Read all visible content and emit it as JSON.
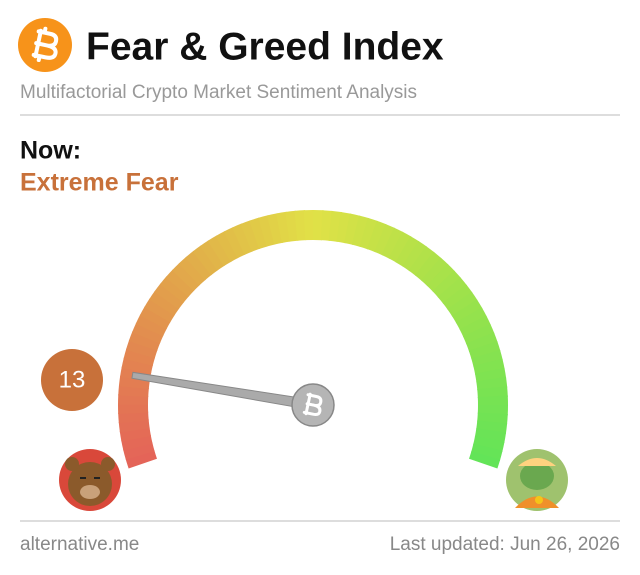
{
  "header": {
    "title": "Fear & Greed Index",
    "subtitle": "Multifactorial Crypto Market Sentiment Analysis"
  },
  "chart_data": {
    "type": "gauge",
    "label": "Now:",
    "classification": "Extreme Fear",
    "value": 13,
    "range": [
      0,
      100
    ],
    "classification_color": "#c8713a"
  },
  "footer": {
    "source": "alternative.me",
    "updated": "Last updated: Jun 26, 2026"
  }
}
